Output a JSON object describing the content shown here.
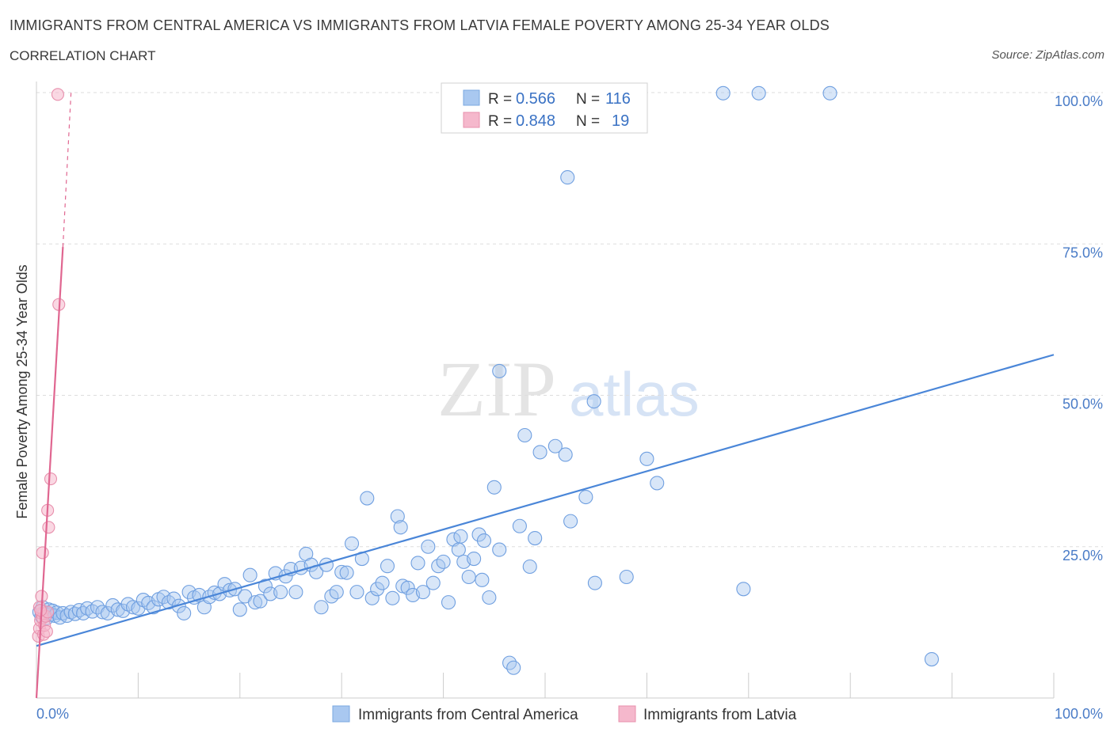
{
  "title": "IMMIGRANTS FROM CENTRAL AMERICA VS IMMIGRANTS FROM LATVIA FEMALE POVERTY AMONG 25-34 YEAR OLDS",
  "subtitle": "CORRELATION CHART",
  "source": "Source: ZipAtlas.com",
  "watermark_zip": "ZIP",
  "watermark_atlas": "atlas",
  "colors": {
    "central_america": "#4a86d8",
    "central_america_fill": "#a9c8f0",
    "latvia": "#e06690",
    "latvia_fill": "#f5b8cc",
    "tick_text": "#4a7cc7",
    "grid": "#dddddd"
  },
  "legend": {
    "r_label": "R =",
    "n_label": "N =",
    "rows": [
      {
        "r": "0.566",
        "n": "116"
      },
      {
        "r": "0.848",
        "n": "19"
      }
    ]
  },
  "bottom_legend": [
    "Immigrants from Central America",
    "Immigrants from Latvia"
  ],
  "chart_data": {
    "type": "scatter",
    "xlabel": "",
    "ylabel": "Female Poverty Among 25-34 Year Olds",
    "xlim": [
      0,
      100
    ],
    "ylim": [
      0,
      100
    ],
    "x_tick_labels": [
      "0.0%",
      "100.0%"
    ],
    "y_tick_labels": [
      "25.0%",
      "50.0%",
      "75.0%",
      "100.0%"
    ],
    "y_ticks": [
      25,
      50,
      75,
      100
    ],
    "grid": true,
    "series": [
      {
        "name": "Immigrants from Central America",
        "r": 0.566,
        "n": 116,
        "trend": {
          "x": [
            0,
            100
          ],
          "y": [
            8.6,
            56.7
          ]
        },
        "points": [
          [
            0.3,
            14.2
          ],
          [
            0.5,
            13.5
          ],
          [
            0.6,
            15.0
          ],
          [
            0.8,
            14.0
          ],
          [
            1.0,
            13.2
          ],
          [
            1.2,
            14.6
          ],
          [
            1.4,
            13.8
          ],
          [
            1.6,
            14.4
          ],
          [
            1.8,
            13.6
          ],
          [
            2.0,
            14.1
          ],
          [
            2.3,
            13.3
          ],
          [
            2.6,
            14.0
          ],
          [
            3.0,
            13.6
          ],
          [
            3.4,
            14.2
          ],
          [
            3.8,
            13.9
          ],
          [
            4.2,
            14.5
          ],
          [
            4.6,
            14.0
          ],
          [
            5.0,
            14.8
          ],
          [
            5.5,
            14.3
          ],
          [
            6.0,
            15.0
          ],
          [
            6.5,
            14.2
          ],
          [
            7.0,
            14.0
          ],
          [
            7.5,
            15.3
          ],
          [
            8.0,
            14.6
          ],
          [
            8.5,
            14.4
          ],
          [
            9.0,
            15.5
          ],
          [
            9.5,
            15.0
          ],
          [
            10.0,
            14.8
          ],
          [
            10.5,
            16.2
          ],
          [
            11.0,
            15.7
          ],
          [
            11.5,
            15.0
          ],
          [
            12.0,
            16.3
          ],
          [
            12.5,
            16.7
          ],
          [
            13.0,
            15.8
          ],
          [
            13.5,
            16.4
          ],
          [
            14.0,
            15.2
          ],
          [
            14.5,
            14.0
          ],
          [
            15.0,
            17.5
          ],
          [
            15.5,
            16.6
          ],
          [
            16.0,
            17.0
          ],
          [
            16.5,
            15.0
          ],
          [
            17.0,
            16.7
          ],
          [
            17.5,
            17.4
          ],
          [
            18.0,
            17.2
          ],
          [
            18.5,
            18.8
          ],
          [
            19.0,
            17.8
          ],
          [
            19.5,
            18.0
          ],
          [
            20.0,
            14.6
          ],
          [
            20.5,
            16.8
          ],
          [
            21.0,
            20.3
          ],
          [
            21.5,
            15.8
          ],
          [
            22.0,
            16.0
          ],
          [
            22.5,
            18.5
          ],
          [
            23.0,
            17.2
          ],
          [
            23.5,
            20.6
          ],
          [
            24.0,
            17.5
          ],
          [
            24.5,
            20.1
          ],
          [
            25.0,
            21.3
          ],
          [
            25.5,
            17.5
          ],
          [
            26.0,
            21.5
          ],
          [
            26.5,
            23.8
          ],
          [
            27.0,
            22.0
          ],
          [
            27.5,
            20.8
          ],
          [
            28.0,
            15.0
          ],
          [
            28.5,
            22.0
          ],
          [
            29.0,
            16.8
          ],
          [
            29.5,
            17.5
          ],
          [
            30.0,
            20.8
          ],
          [
            30.5,
            20.7
          ],
          [
            31.0,
            25.5
          ],
          [
            31.5,
            17.5
          ],
          [
            32.0,
            23.0
          ],
          [
            32.5,
            33.0
          ],
          [
            33.0,
            16.5
          ],
          [
            33.5,
            18.0
          ],
          [
            34.0,
            19.0
          ],
          [
            34.5,
            21.8
          ],
          [
            35.0,
            16.5
          ],
          [
            35.5,
            30.0
          ],
          [
            35.8,
            28.2
          ],
          [
            36.0,
            18.5
          ],
          [
            36.5,
            18.2
          ],
          [
            37.0,
            17.0
          ],
          [
            37.5,
            22.3
          ],
          [
            38.0,
            17.5
          ],
          [
            38.5,
            25.0
          ],
          [
            39.0,
            19.0
          ],
          [
            39.5,
            21.8
          ],
          [
            40.0,
            22.5
          ],
          [
            40.5,
            15.8
          ],
          [
            41.0,
            26.2
          ],
          [
            41.5,
            24.5
          ],
          [
            41.7,
            26.7
          ],
          [
            42.0,
            22.5
          ],
          [
            42.5,
            20.0
          ],
          [
            43.0,
            23.0
          ],
          [
            43.5,
            27.0
          ],
          [
            43.8,
            19.5
          ],
          [
            44.0,
            26.0
          ],
          [
            44.5,
            16.6
          ],
          [
            45.0,
            34.8
          ],
          [
            45.5,
            24.5
          ],
          [
            46.5,
            5.8
          ],
          [
            46.9,
            5.0
          ],
          [
            47.5,
            28.4
          ],
          [
            48.0,
            43.4
          ],
          [
            48.5,
            21.7
          ],
          [
            49.0,
            26.4
          ],
          [
            49.5,
            40.6
          ],
          [
            51.0,
            41.6
          ],
          [
            52.0,
            40.2
          ],
          [
            52.5,
            29.2
          ],
          [
            54.0,
            33.2
          ],
          [
            54.8,
            49.0
          ],
          [
            54.9,
            19.0
          ],
          [
            58.0,
            20.0
          ],
          [
            69.5,
            18.0
          ],
          [
            88.0,
            6.4
          ],
          [
            52.2,
            86.0
          ],
          [
            67.5,
            99.9
          ]
        ],
        "extra_points": [
          [
            71.0,
            99.9
          ],
          [
            78.0,
            99.9
          ],
          [
            45.5,
            54.0
          ],
          [
            60.0,
            39.5
          ],
          [
            61.0,
            35.5
          ]
        ]
      },
      {
        "name": "Immigrants from Latvia",
        "r": 0.848,
        "n": 19,
        "trend": {
          "x": [
            0,
            2.6
          ],
          "y": [
            0,
            74.5
          ]
        },
        "trend_dashed": {
          "x": [
            2.6,
            3.4
          ],
          "y": [
            74.5,
            100
          ]
        },
        "points": [
          [
            0.2,
            10.2
          ],
          [
            0.3,
            11.5
          ],
          [
            0.4,
            12.8
          ],
          [
            0.5,
            14.0
          ],
          [
            0.6,
            13.2
          ],
          [
            0.3,
            15.0
          ],
          [
            0.5,
            16.8
          ],
          [
            0.7,
            10.5
          ],
          [
            0.8,
            12.0
          ],
          [
            0.9,
            13.5
          ],
          [
            1.0,
            11.0
          ],
          [
            1.1,
            14.2
          ],
          [
            0.6,
            24.0
          ],
          [
            1.2,
            28.2
          ],
          [
            1.1,
            31.0
          ],
          [
            1.4,
            36.2
          ],
          [
            2.2,
            65.0
          ],
          [
            2.1,
            99.7
          ],
          [
            0.4,
            14.5
          ]
        ]
      }
    ]
  }
}
